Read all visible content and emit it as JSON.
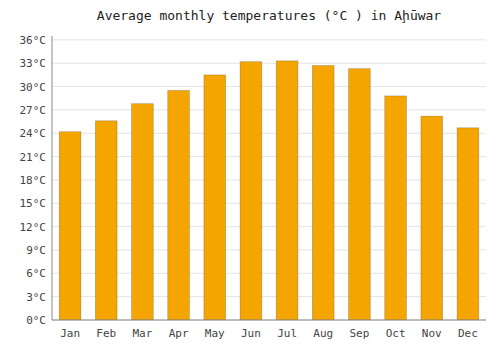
{
  "chart_data": {
    "type": "bar",
    "title": "Average monthly temperatures (°C ) in Aḩūwar",
    "categories": [
      "Jan",
      "Feb",
      "Mar",
      "Apr",
      "May",
      "Jun",
      "Jul",
      "Aug",
      "Sep",
      "Oct",
      "Nov",
      "Dec"
    ],
    "values": [
      24.2,
      25.6,
      27.8,
      29.5,
      31.5,
      33.2,
      33.3,
      32.7,
      32.3,
      28.8,
      26.2,
      24.7
    ],
    "color": "#F5A500",
    "ylim": [
      0,
      36.5
    ],
    "yticks": [
      {
        "value": 0,
        "label": "0°C"
      },
      {
        "value": 3,
        "label": "3°C"
      },
      {
        "value": 6,
        "label": "6°C"
      },
      {
        "value": 9,
        "label": "9°C"
      },
      {
        "value": 12,
        "label": "12°C"
      },
      {
        "value": 15,
        "label": "15°C"
      },
      {
        "value": 18,
        "label": "18°C"
      },
      {
        "value": 21,
        "label": "21°C"
      },
      {
        "value": 24,
        "label": "24°C"
      },
      {
        "value": 27,
        "label": "27°C"
      },
      {
        "value": 30,
        "label": "30°C"
      },
      {
        "value": 33,
        "label": "33°C"
      },
      {
        "value": 36,
        "label": "36°C"
      }
    ],
    "grid": true
  }
}
